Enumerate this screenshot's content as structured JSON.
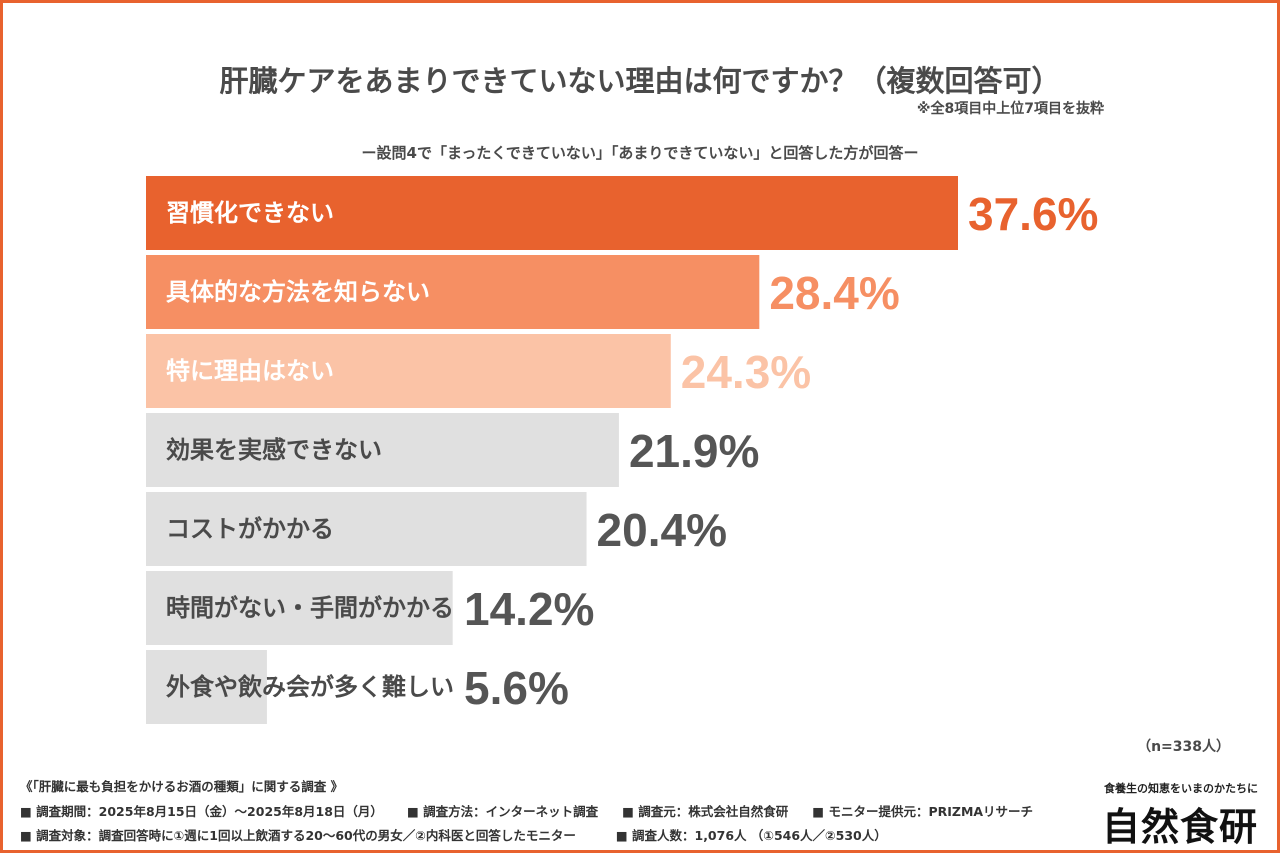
{
  "title": "肝臓ケアをあまりできていない理由は何ですか？（複数回答可）",
  "note": "※全8項目中上位7項目を抜粋",
  "subtitle": "ー設問4で「まったくできていない」「あまりできていない」と回答した方が回答ー",
  "sample": "（n=338人）",
  "chart_data": {
    "type": "bar",
    "orientation": "horizontal",
    "unit": "%",
    "categories": [
      "習慣化できない",
      "具体的な方法を知らない",
      "特に理由はない",
      "効果を実感できない",
      "コストがかかる",
      "時間がない・手間がかかる",
      "外食や飲み会が多く難しい"
    ],
    "values": [
      37.6,
      28.4,
      24.3,
      21.9,
      20.4,
      14.2,
      5.6
    ],
    "labels": [
      "37.6%",
      "28.4%",
      "24.3%",
      "21.9%",
      "20.4%",
      "14.2%",
      "5.6%"
    ],
    "bar_colors": [
      "#e8622e",
      "#f68f63",
      "#fbc3a6",
      "#e0e0e0",
      "#e0e0e0",
      "#e0e0e0",
      "#e0e0e0"
    ],
    "label_colors": [
      "#ffffff",
      "#ffffff",
      "#ffffff",
      "#4a4a4a",
      "#4a4a4a",
      "#4a4a4a",
      "#4a4a4a"
    ],
    "value_colors": [
      "#e8622e",
      "#f68f63",
      "#fbc3a6",
      "#555555",
      "#555555",
      "#555555",
      "#555555"
    ],
    "xlim": [
      0,
      40
    ],
    "grid": false
  },
  "footer": {
    "survey_title": "《「肝臓に最も負担をかけるお酒の種類」に関する調査 》",
    "line1": [
      "■ 調査期間：2025年8月15日（金）～2025年8月18日（月）",
      "■ 調査方法：インターネット調査",
      "■ 調査元：株式会社自然食研",
      "■ モニター提供元：PRIZMAリサーチ"
    ],
    "line2": [
      "■ 調査対象：調査回答時に①週に1回以上飲酒する20～60代の男女／②内科医と回答したモニター",
      "■ 調査人数：1,076人 （①546人／②530人）"
    ]
  },
  "logo": {
    "tagline": "食養生の知恵をいまのかたちに",
    "name": "自然食研"
  }
}
